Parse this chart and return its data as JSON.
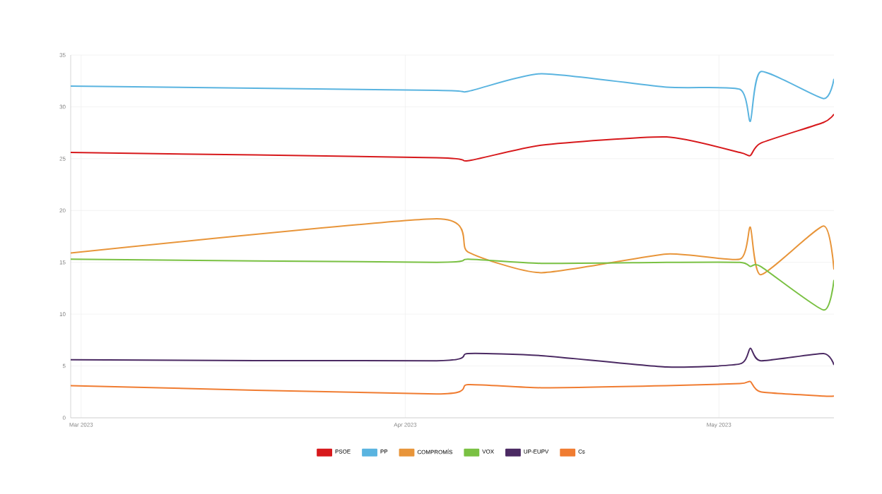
{
  "chart_data": {
    "type": "line",
    "x": [
      "2023-02-28",
      "2023-04-04",
      "2023-04-07",
      "2023-04-14",
      "2023-04-26",
      "2023-05-03",
      "2023-05-04",
      "2023-05-05",
      "2023-05-11",
      "2023-05-12"
    ],
    "series": [
      {
        "name": "PSOE",
        "color": "#d7191c",
        "values": [
          25.6,
          25.1,
          24.8,
          26.3,
          27.1,
          25.6,
          25.3,
          26.5,
          28.5,
          29.3
        ]
      },
      {
        "name": "PP",
        "color": "#5ab4e0",
        "values": [
          32.0,
          31.6,
          31.5,
          33.2,
          31.9,
          31.7,
          28.6,
          33.4,
          30.8,
          32.7
        ]
      },
      {
        "name": "COMPROMÍS",
        "color": "#e8953a",
        "values": [
          15.9,
          19.2,
          16.0,
          14.0,
          15.8,
          15.3,
          18.4,
          13.8,
          18.5,
          14.3
        ]
      },
      {
        "name": "VOX",
        "color": "#7ac143",
        "values": [
          15.3,
          15.0,
          15.3,
          14.9,
          15.0,
          15.0,
          14.6,
          14.6,
          10.4,
          13.3
        ]
      },
      {
        "name": "UP-EUPV",
        "color": "#4b2a63",
        "values": [
          5.6,
          5.5,
          6.2,
          6.0,
          4.9,
          5.2,
          6.7,
          5.5,
          6.2,
          5.1
        ]
      },
      {
        "name": "Cs",
        "color": "#f07c31",
        "values": [
          3.1,
          2.3,
          3.2,
          2.9,
          3.1,
          3.3,
          3.5,
          2.5,
          2.1,
          2.1
        ]
      }
    ],
    "xlim": [
      "2023-02-28",
      "2023-05-12"
    ],
    "xticks": [
      {
        "value": "2023-03-01",
        "label": "Mar 2023"
      },
      {
        "value": "2023-04-01",
        "label": "Apr 2023"
      },
      {
        "value": "2023-05-01",
        "label": "May 2023"
      }
    ],
    "ylim": [
      0,
      35
    ],
    "yticks": [
      0,
      5,
      10,
      15,
      20,
      25,
      30,
      35
    ],
    "grid": true,
    "legend": "bottom",
    "marker": "none",
    "line_style": "solid"
  }
}
